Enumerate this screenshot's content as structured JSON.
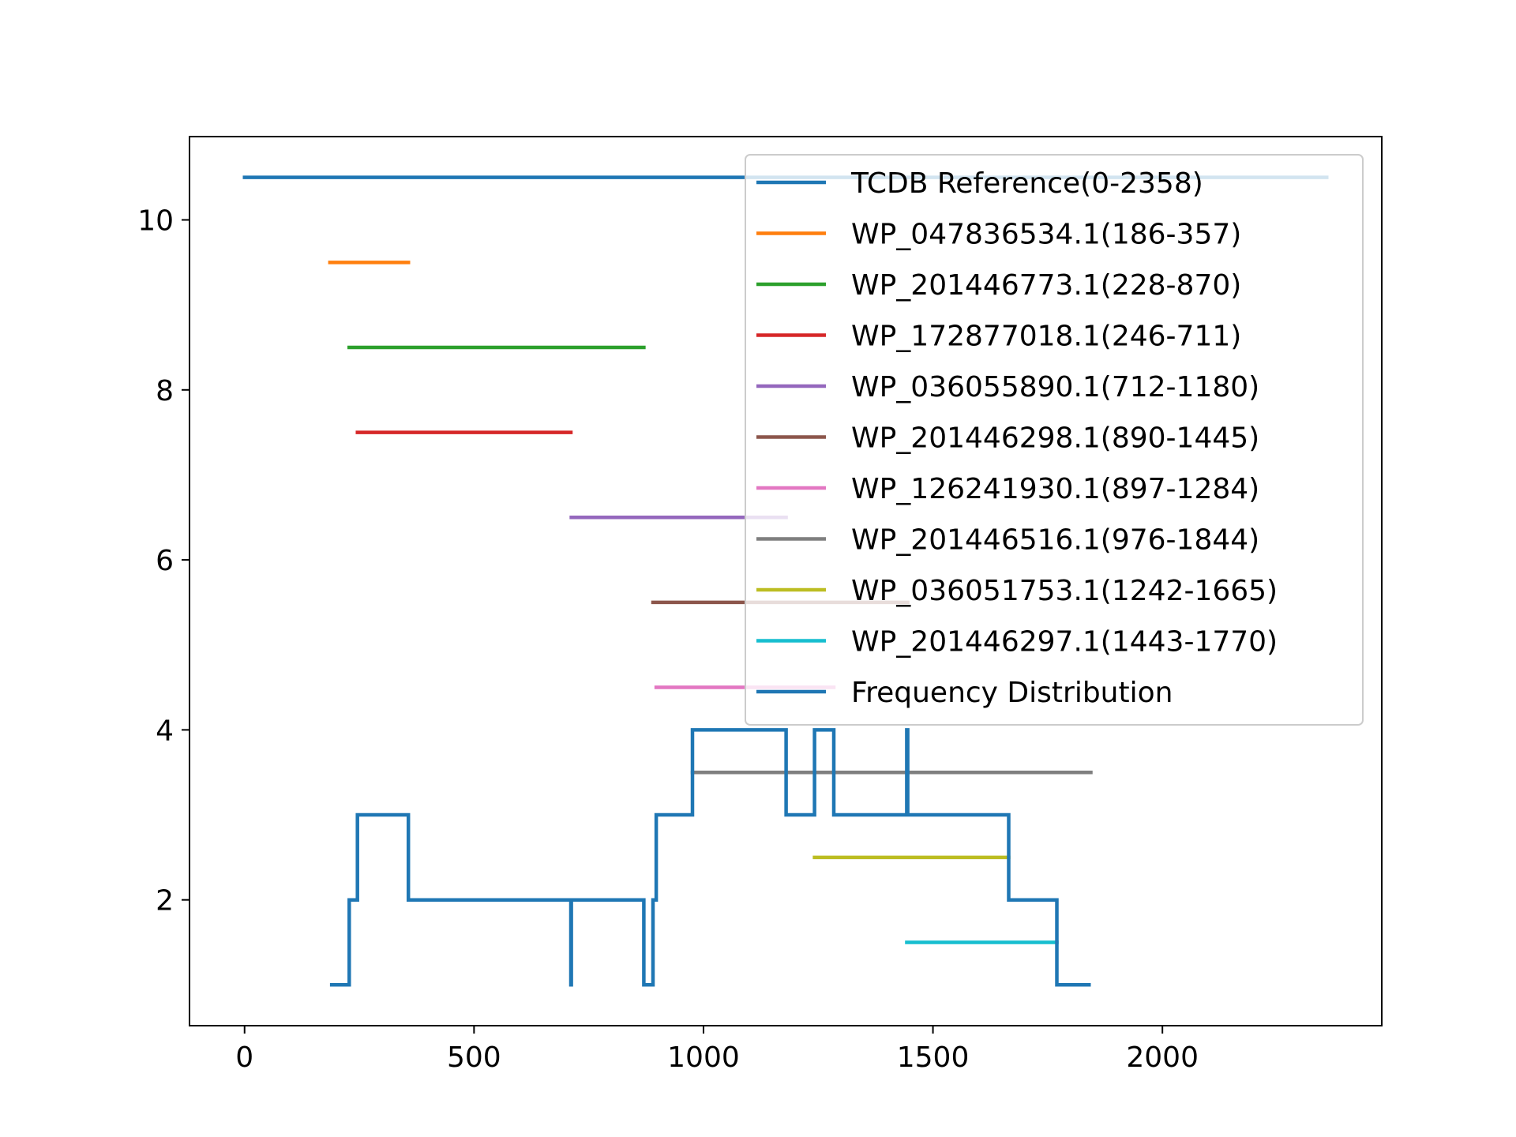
{
  "chart_data": {
    "type": "line",
    "title": "",
    "xlabel": "",
    "ylabel": "",
    "xlim": [
      -120,
      2478
    ],
    "ylim": [
      0.52,
      10.98
    ],
    "x_ticks": [
      0,
      500,
      1000,
      1500,
      2000
    ],
    "y_ticks": [
      2,
      4,
      6,
      8,
      10
    ],
    "grid": false,
    "legend_position": "top-right",
    "segments": [
      {
        "name": "TCDB Reference(0-2358)",
        "color": "#1f77b4",
        "x": [
          0,
          2358
        ],
        "y": 10.5
      },
      {
        "name": "WP_047836534.1(186-357)",
        "color": "#ff7f0e",
        "x": [
          186,
          357
        ],
        "y": 9.5
      },
      {
        "name": "WP_201446773.1(228-870)",
        "color": "#2ca02c",
        "x": [
          228,
          870
        ],
        "y": 8.5
      },
      {
        "name": "WP_172877018.1(246-711)",
        "color": "#d62728",
        "x": [
          246,
          711
        ],
        "y": 7.5
      },
      {
        "name": "WP_036055890.1(712-1180)",
        "color": "#9467bd",
        "x": [
          712,
          1180
        ],
        "y": 6.5
      },
      {
        "name": "WP_201446298.1(890-1445)",
        "color": "#8c564b",
        "x": [
          890,
          1445
        ],
        "y": 5.5
      },
      {
        "name": "WP_126241930.1(897-1284)",
        "color": "#e377c2",
        "x": [
          897,
          1284
        ],
        "y": 4.5
      },
      {
        "name": "WP_201446516.1(976-1844)",
        "color": "#7f7f7f",
        "x": [
          976,
          1844
        ],
        "y": 3.5
      },
      {
        "name": "WP_036051753.1(1242-1665)",
        "color": "#bcbd22",
        "x": [
          1242,
          1665
        ],
        "y": 2.5
      },
      {
        "name": "WP_201446297.1(1443-1770)",
        "color": "#17becf",
        "x": [
          1443,
          1770
        ],
        "y": 1.5
      }
    ],
    "frequency": {
      "name": "Frequency Distribution",
      "color": "#1f77b4",
      "points": [
        [
          186,
          1
        ],
        [
          228,
          1
        ],
        [
          228,
          2
        ],
        [
          246,
          2
        ],
        [
          246,
          3
        ],
        [
          357,
          3
        ],
        [
          357,
          2
        ],
        [
          711,
          2
        ],
        [
          711,
          1
        ],
        [
          712,
          1
        ],
        [
          712,
          2
        ],
        [
          870,
          2
        ],
        [
          870,
          1
        ],
        [
          890,
          1
        ],
        [
          890,
          2
        ],
        [
          897,
          2
        ],
        [
          897,
          3
        ],
        [
          976,
          3
        ],
        [
          976,
          4
        ],
        [
          1180,
          4
        ],
        [
          1180,
          3
        ],
        [
          1242,
          3
        ],
        [
          1242,
          4
        ],
        [
          1284,
          4
        ],
        [
          1284,
          3
        ],
        [
          1443,
          3
        ],
        [
          1443,
          4
        ],
        [
          1445,
          4
        ],
        [
          1445,
          3
        ],
        [
          1665,
          3
        ],
        [
          1665,
          2
        ],
        [
          1770,
          2
        ],
        [
          1770,
          1
        ],
        [
          1844,
          1
        ]
      ]
    }
  }
}
